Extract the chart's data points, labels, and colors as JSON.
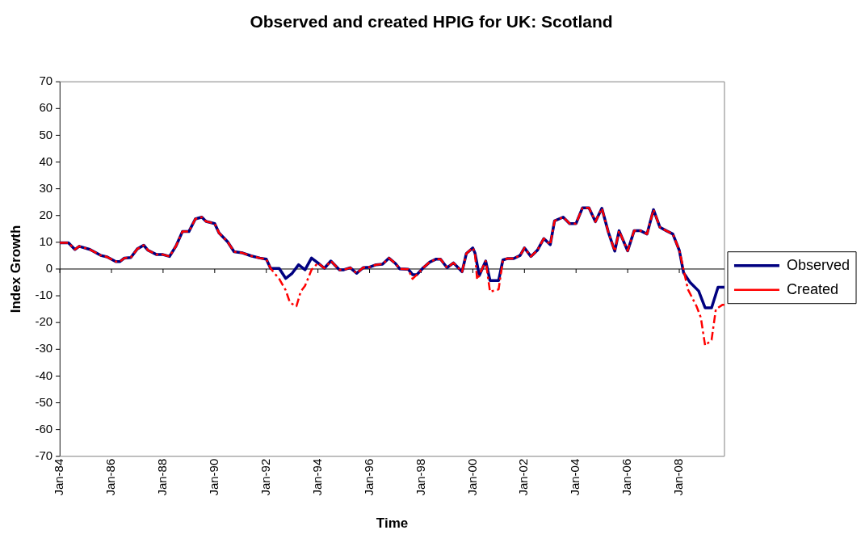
{
  "chart_data": {
    "type": "line",
    "title": "Observed and created HPIG for UK: Scotland",
    "xlabel": "Time",
    "ylabel": "Index Growth",
    "xlim": [
      "1984-01",
      "2009-10"
    ],
    "xticks": [
      {
        "value": "1984-01",
        "label": "Jan-84"
      },
      {
        "value": "1986-01",
        "label": "Jan-86"
      },
      {
        "value": "1988-01",
        "label": "Jan-88"
      },
      {
        "value": "1990-01",
        "label": "Jan-90"
      },
      {
        "value": "1992-01",
        "label": "Jan-92"
      },
      {
        "value": "1994-01",
        "label": "Jan-94"
      },
      {
        "value": "1996-01",
        "label": "Jan-96"
      },
      {
        "value": "1998-01",
        "label": "Jan-98"
      },
      {
        "value": "2000-01",
        "label": "Jan-00"
      },
      {
        "value": "2002-01",
        "label": "Jan-02"
      },
      {
        "value": "2004-01",
        "label": "Jan-04"
      },
      {
        "value": "2006-01",
        "label": "Jan-06"
      },
      {
        "value": "2008-01",
        "label": "Jan-08"
      }
    ],
    "ylim": [
      -70,
      70
    ],
    "yticks": [
      -70,
      -60,
      -50,
      -40,
      -30,
      -20,
      -10,
      0,
      10,
      20,
      30,
      40,
      50,
      60,
      70
    ],
    "grid": false,
    "legend": "right",
    "marker": "none",
    "ref_lines": [
      {
        "axis": "y",
        "value": 0,
        "color": "#000000"
      }
    ],
    "series": [
      {
        "name": "Observed",
        "color": "#000080",
        "line_style": "solid",
        "x": [
          "1984-01",
          "1984-05",
          "1984-08",
          "1984-10",
          "1985-03",
          "1985-08",
          "1985-11",
          "1986-03",
          "1986-05",
          "1986-07",
          "1986-10",
          "1987-01",
          "1987-04",
          "1987-06",
          "1987-10",
          "1988-01",
          "1988-04",
          "1988-07",
          "1988-10",
          "1989-01",
          "1989-04",
          "1989-07",
          "1989-09",
          "1990-01",
          "1990-03",
          "1990-07",
          "1990-10",
          "1991-02",
          "1991-06",
          "1991-10",
          "1992-01",
          "1992-03",
          "1992-07",
          "1992-10",
          "1993-01",
          "1993-04",
          "1993-07",
          "1993-10",
          "1994-01",
          "1994-04",
          "1994-07",
          "1994-11",
          "1995-01",
          "1995-04",
          "1995-07",
          "1995-10",
          "1996-01",
          "1996-04",
          "1996-07",
          "1996-10",
          "1997-01",
          "1997-03",
          "1997-07",
          "1997-09",
          "1997-11",
          "1998-02",
          "1998-05",
          "1998-08",
          "1998-10",
          "1999-01",
          "1999-04",
          "1999-08",
          "1999-10",
          "2000-01",
          "2000-02",
          "2000-04",
          "2000-07",
          "2000-09",
          "2001-01",
          "2001-03",
          "2001-05",
          "2001-08",
          "2001-11",
          "2002-01",
          "2002-04",
          "2002-07",
          "2002-10",
          "2003-01",
          "2003-03",
          "2003-07",
          "2003-10",
          "2004-01",
          "2004-04",
          "2004-07",
          "2004-10",
          "2005-01",
          "2005-04",
          "2005-07",
          "2005-09",
          "2006-01",
          "2006-04",
          "2006-07",
          "2006-10",
          "2007-01",
          "2007-04",
          "2007-07",
          "2007-10",
          "2008-01",
          "2008-03",
          "2008-06",
          "2008-10",
          "2009-01",
          "2009-04",
          "2009-07",
          "2009-10"
        ],
        "values": [
          9.8,
          9.8,
          7.3,
          8.5,
          7.3,
          5.1,
          4.5,
          2.8,
          2.8,
          4.1,
          4.3,
          7.5,
          8.9,
          7.0,
          5.4,
          5.4,
          4.7,
          8.6,
          14.0,
          14.0,
          18.7,
          19.4,
          17.8,
          17.0,
          13.5,
          10.2,
          6.5,
          6.0,
          4.9,
          4.1,
          3.7,
          0.2,
          0.2,
          -3.5,
          -1.6,
          1.6,
          -0.3,
          4.1,
          2.3,
          0.3,
          3.0,
          -0.3,
          -0.3,
          0.5,
          -1.6,
          0.5,
          0.7,
          1.6,
          1.8,
          4.1,
          2.1,
          0.1,
          -0.1,
          -2.1,
          -2.1,
          0.5,
          2.6,
          3.7,
          3.7,
          0.5,
          2.3,
          -1.0,
          5.8,
          7.9,
          6.0,
          -2.4,
          3.0,
          -4.3,
          -4.3,
          3.4,
          3.9,
          3.9,
          5.1,
          7.9,
          4.7,
          7.0,
          11.4,
          9.1,
          18.0,
          19.4,
          17.0,
          17.0,
          22.9,
          22.9,
          17.7,
          22.7,
          13.8,
          6.7,
          14.3,
          6.8,
          14.3,
          14.3,
          13.1,
          22.2,
          15.6,
          14.3,
          13.1,
          7.0,
          -1.4,
          -5.0,
          -8.2,
          -14.5,
          -14.5,
          -6.8,
          -6.8
        ]
      },
      {
        "name": "Created",
        "color": "#ff0000",
        "line_style": "dashed",
        "x": [
          "1984-01",
          "1984-05",
          "1984-08",
          "1984-10",
          "1985-03",
          "1985-08",
          "1985-11",
          "1986-03",
          "1986-05",
          "1986-07",
          "1986-10",
          "1987-01",
          "1987-04",
          "1987-06",
          "1987-10",
          "1988-01",
          "1988-04",
          "1988-07",
          "1988-10",
          "1989-01",
          "1989-04",
          "1989-07",
          "1989-09",
          "1990-01",
          "1990-03",
          "1990-07",
          "1990-10",
          "1991-02",
          "1991-06",
          "1991-10",
          "1992-01",
          "1992-03",
          "1992-07",
          "1992-10",
          "1992-12",
          "1993-03",
          "1993-05",
          "1993-07",
          "1993-10",
          "1994-01",
          "1994-04",
          "1994-07",
          "1994-11",
          "1995-01",
          "1995-04",
          "1995-07",
          "1995-10",
          "1996-01",
          "1996-04",
          "1996-07",
          "1996-10",
          "1997-01",
          "1997-03",
          "1997-07",
          "1997-09",
          "1997-11",
          "1998-02",
          "1998-05",
          "1998-08",
          "1998-10",
          "1999-01",
          "1999-04",
          "1999-08",
          "1999-10",
          "2000-01",
          "2000-02",
          "2000-03",
          "2000-07",
          "2000-09",
          "2001-01",
          "2001-03",
          "2001-05",
          "2001-08",
          "2001-11",
          "2002-01",
          "2002-04",
          "2002-07",
          "2002-10",
          "2003-01",
          "2003-03",
          "2003-07",
          "2003-10",
          "2004-01",
          "2004-04",
          "2004-07",
          "2004-10",
          "2005-01",
          "2005-04",
          "2005-07",
          "2005-09",
          "2006-01",
          "2006-04",
          "2006-07",
          "2006-10",
          "2007-01",
          "2007-04",
          "2007-07",
          "2007-10",
          "2008-01",
          "2008-03",
          "2008-05",
          "2008-09",
          "2008-11",
          "2009-01",
          "2009-04",
          "2009-06",
          "2009-09",
          "2009-10"
        ],
        "values": [
          9.8,
          9.8,
          7.3,
          8.5,
          7.3,
          5.1,
          4.5,
          2.8,
          2.8,
          4.1,
          4.3,
          7.5,
          8.9,
          7.0,
          5.4,
          5.4,
          4.7,
          8.6,
          14.0,
          14.0,
          18.7,
          19.4,
          17.8,
          17.0,
          13.5,
          10.2,
          6.5,
          6.0,
          4.9,
          4.1,
          3.7,
          0.2,
          -3.7,
          -7.9,
          -12.6,
          -13.9,
          -8.4,
          -6.3,
          -0.3,
          2.3,
          0.3,
          3.0,
          -0.3,
          -0.3,
          0.5,
          -1.6,
          0.5,
          0.7,
          1.6,
          1.8,
          4.1,
          2.1,
          0.1,
          -0.1,
          -3.7,
          -2.1,
          0.5,
          2.6,
          3.7,
          3.7,
          0.5,
          2.3,
          -1.0,
          5.8,
          7.9,
          6.0,
          -4.0,
          3.0,
          -8.5,
          -7.6,
          3.4,
          3.9,
          3.9,
          5.1,
          7.9,
          4.7,
          7.0,
          11.4,
          9.1,
          18.0,
          19.4,
          17.0,
          17.0,
          22.9,
          22.9,
          17.7,
          22.7,
          13.8,
          6.7,
          14.3,
          6.8,
          14.3,
          14.3,
          13.1,
          22.2,
          15.6,
          14.3,
          13.1,
          7.0,
          -0.3,
          -7.6,
          -13.9,
          -18.1,
          -28.6,
          -26.5,
          -15.0,
          -13.4,
          -13.4
        ]
      }
    ]
  }
}
